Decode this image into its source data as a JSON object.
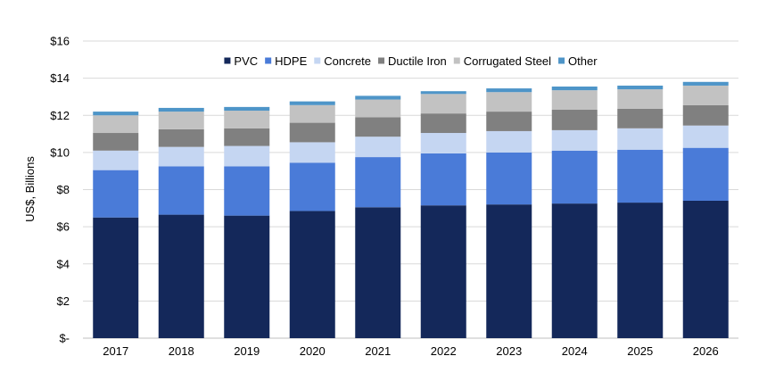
{
  "chart_data": {
    "type": "bar",
    "stacked": true,
    "title": "",
    "xlabel": "",
    "ylabel": "US$, Billions",
    "ylim": [
      0,
      16
    ],
    "yticks": [
      0,
      2,
      4,
      6,
      8,
      10,
      12,
      14,
      16
    ],
    "ytick_labels": [
      "$-",
      "$2",
      "$4",
      "$6",
      "$8",
      "$10",
      "$12",
      "$14",
      "$16"
    ],
    "grid": true,
    "legend_position": "top",
    "categories": [
      "2017",
      "2018",
      "2019",
      "2020",
      "2021",
      "2022",
      "2023",
      "2024",
      "2025",
      "2026"
    ],
    "series": [
      {
        "name": "PVC",
        "color": "#14285a",
        "values": [
          6.5,
          6.65,
          6.6,
          6.85,
          7.05,
          7.15,
          7.2,
          7.25,
          7.3,
          7.4
        ]
      },
      {
        "name": "HDPE",
        "color": "#4a7bd8",
        "values": [
          2.55,
          2.6,
          2.65,
          2.6,
          2.7,
          2.8,
          2.8,
          2.85,
          2.85,
          2.85
        ]
      },
      {
        "name": "Concrete",
        "color": "#c5d6f2",
        "values": [
          1.05,
          1.05,
          1.1,
          1.1,
          1.1,
          1.1,
          1.15,
          1.1,
          1.15,
          1.2
        ]
      },
      {
        "name": "Ductile Iron",
        "color": "#808080",
        "values": [
          0.95,
          0.95,
          0.95,
          1.05,
          1.05,
          1.05,
          1.05,
          1.1,
          1.05,
          1.1
        ]
      },
      {
        "name": "Corrugated Steel",
        "color": "#c2c2c2",
        "values": [
          0.95,
          0.95,
          0.95,
          0.95,
          0.95,
          1.05,
          1.05,
          1.05,
          1.05,
          1.05
        ]
      },
      {
        "name": "Other",
        "color": "#4e95c8",
        "values": [
          0.2,
          0.2,
          0.2,
          0.2,
          0.2,
          0.15,
          0.2,
          0.2,
          0.2,
          0.2
        ]
      }
    ]
  }
}
